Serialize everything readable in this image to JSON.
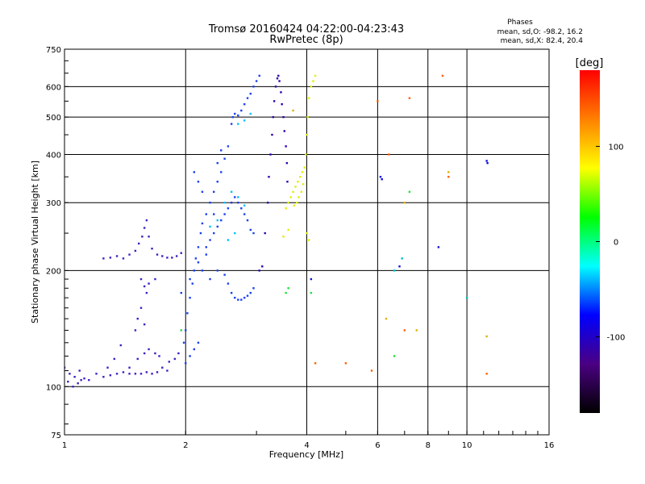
{
  "chart_data": {
    "type": "scatter",
    "title": "Tromsø 20160424 04:22:00-04:23:43",
    "subtitle": "RwPretec (8p)",
    "xlabel": "Frequency [MHz]",
    "ylabel": "Stationary phase Virtual Height [km]",
    "x_scale": "log",
    "y_scale": "log",
    "xlim": [
      1,
      16
    ],
    "ylim": [
      75,
      750
    ],
    "x_ticks": [
      1,
      2,
      4,
      6,
      8,
      10,
      16
    ],
    "y_ticks": [
      75,
      100,
      200,
      300,
      400,
      500,
      600,
      750
    ],
    "grid": true,
    "legend": {
      "title": "Phases",
      "lines": [
        "mean, sd,O: -98.2, 16.2",
        "mean, sd,X: 82.4, 20.4"
      ],
      "placement": "top-right"
    },
    "colorbar": {
      "label": "[deg]",
      "range": [
        -180,
        180
      ],
      "ticks": [
        100,
        0,
        -100
      ],
      "colors": [
        "#000000",
        "#4b0082",
        "#0000ff",
        "#00ffff",
        "#00ff00",
        "#ffff00",
        "#ff8000",
        "#ff0000"
      ]
    },
    "series": [
      {
        "color": "#4020c0",
        "points": [
          [
            1.0,
            112
          ],
          [
            1.03,
            108
          ],
          [
            1.06,
            106
          ],
          [
            1.09,
            110
          ],
          [
            1.12,
            105
          ],
          [
            1.15,
            104
          ],
          [
            1.2,
            108
          ],
          [
            1.25,
            106
          ],
          [
            1.3,
            107
          ],
          [
            1.35,
            108
          ],
          [
            1.4,
            109
          ],
          [
            1.45,
            108
          ],
          [
            1.5,
            108
          ],
          [
            1.55,
            108
          ],
          [
            1.6,
            109
          ],
          [
            1.65,
            108
          ],
          [
            1.7,
            109
          ],
          [
            1.75,
            112
          ],
          [
            1.8,
            110
          ],
          [
            1.02,
            103
          ],
          [
            1.05,
            100
          ],
          [
            1.08,
            102
          ],
          [
            1.1,
            104
          ],
          [
            1.28,
            112
          ],
          [
            1.33,
            118
          ],
          [
            1.38,
            128
          ],
          [
            1.45,
            112
          ],
          [
            1.52,
            118
          ],
          [
            1.58,
            122
          ],
          [
            1.62,
            125
          ],
          [
            1.68,
            122
          ],
          [
            1.72,
            120
          ],
          [
            1.82,
            116
          ],
          [
            1.88,
            118
          ],
          [
            1.92,
            122
          ],
          [
            1.25,
            215
          ],
          [
            1.3,
            216
          ],
          [
            1.35,
            218
          ],
          [
            1.4,
            215
          ],
          [
            1.45,
            220
          ],
          [
            1.5,
            225
          ],
          [
            1.53,
            235
          ],
          [
            1.56,
            245
          ],
          [
            1.58,
            258
          ],
          [
            1.6,
            270
          ],
          [
            1.62,
            245
          ],
          [
            1.65,
            228
          ],
          [
            1.7,
            220
          ],
          [
            1.75,
            218
          ],
          [
            1.8,
            216
          ],
          [
            1.85,
            216
          ],
          [
            1.9,
            218
          ],
          [
            1.95,
            222
          ],
          [
            1.55,
            190
          ],
          [
            1.58,
            182
          ],
          [
            1.6,
            175
          ],
          [
            1.62,
            185
          ],
          [
            1.68,
            190
          ],
          [
            1.5,
            140
          ],
          [
            1.52,
            150
          ],
          [
            1.55,
            160
          ],
          [
            1.58,
            145
          ]
        ]
      },
      {
        "color": "#1a40f0",
        "points": [
          [
            1.98,
            130
          ],
          [
            2.0,
            140
          ],
          [
            2.02,
            155
          ],
          [
            2.05,
            170
          ],
          [
            2.08,
            185
          ],
          [
            2.1,
            200
          ],
          [
            2.12,
            215
          ],
          [
            2.15,
            230
          ],
          [
            2.18,
            250
          ],
          [
            2.2,
            265
          ],
          [
            2.25,
            280
          ],
          [
            2.3,
            300
          ],
          [
            2.35,
            320
          ],
          [
            2.4,
            340
          ],
          [
            2.45,
            360
          ],
          [
            2.5,
            390
          ],
          [
            2.55,
            420
          ],
          [
            2.6,
            480
          ],
          [
            2.62,
            500
          ],
          [
            2.65,
            510
          ],
          [
            2.7,
            505
          ],
          [
            2.75,
            520
          ],
          [
            2.8,
            540
          ],
          [
            2.85,
            560
          ],
          [
            2.9,
            575
          ],
          [
            2.95,
            600
          ],
          [
            3.0,
            620
          ],
          [
            3.05,
            640
          ],
          [
            2.0,
            115
          ],
          [
            2.05,
            120
          ],
          [
            2.1,
            125
          ],
          [
            2.15,
            130
          ],
          [
            2.2,
            200
          ],
          [
            2.25,
            220
          ],
          [
            2.3,
            240
          ],
          [
            2.35,
            250
          ],
          [
            2.4,
            260
          ],
          [
            2.45,
            270
          ],
          [
            2.5,
            280
          ],
          [
            2.55,
            290
          ],
          [
            2.6,
            300
          ],
          [
            2.65,
            310
          ],
          [
            2.7,
            300
          ],
          [
            2.75,
            290
          ],
          [
            2.8,
            280
          ],
          [
            2.85,
            270
          ],
          [
            2.9,
            255
          ],
          [
            2.95,
            250
          ],
          [
            2.3,
            190
          ],
          [
            2.4,
            200
          ],
          [
            2.5,
            195
          ],
          [
            2.55,
            185
          ],
          [
            2.6,
            175
          ],
          [
            2.65,
            170
          ],
          [
            2.7,
            168
          ],
          [
            2.75,
            168
          ],
          [
            2.8,
            170
          ],
          [
            2.85,
            172
          ],
          [
            2.9,
            175
          ],
          [
            2.95,
            180
          ],
          [
            2.1,
            360
          ],
          [
            2.15,
            340
          ],
          [
            2.2,
            320
          ],
          [
            2.4,
            380
          ],
          [
            2.45,
            410
          ],
          [
            2.35,
            280
          ],
          [
            2.25,
            230
          ],
          [
            2.15,
            210
          ],
          [
            2.05,
            190
          ],
          [
            1.95,
            175
          ]
        ]
      },
      {
        "color": "#3000b0",
        "points": [
          [
            3.05,
            200
          ],
          [
            3.1,
            205
          ],
          [
            3.15,
            250
          ],
          [
            3.2,
            300
          ],
          [
            3.22,
            350
          ],
          [
            3.25,
            400
          ],
          [
            3.28,
            450
          ],
          [
            3.3,
            500
          ],
          [
            3.32,
            550
          ],
          [
            3.35,
            600
          ],
          [
            3.38,
            630
          ],
          [
            3.4,
            640
          ],
          [
            3.42,
            620
          ],
          [
            3.45,
            580
          ],
          [
            3.47,
            540
          ],
          [
            3.5,
            500
          ],
          [
            3.52,
            460
          ],
          [
            3.55,
            420
          ],
          [
            3.57,
            380
          ],
          [
            3.58,
            340
          ],
          [
            3.6,
            300
          ]
        ]
      },
      {
        "color": "#e0f000",
        "points": [
          [
            3.55,
            290
          ],
          [
            3.6,
            300
          ],
          [
            3.65,
            310
          ],
          [
            3.7,
            320
          ],
          [
            3.75,
            330
          ],
          [
            3.8,
            340
          ],
          [
            3.85,
            350
          ],
          [
            3.9,
            360
          ],
          [
            3.95,
            370
          ],
          [
            3.72,
            295
          ],
          [
            3.78,
            300
          ],
          [
            3.82,
            310
          ],
          [
            3.88,
            320
          ],
          [
            3.92,
            335
          ],
          [
            3.98,
            400
          ],
          [
            4.0,
            450
          ],
          [
            4.02,
            500
          ],
          [
            4.05,
            560
          ],
          [
            4.1,
            600
          ],
          [
            4.15,
            620
          ],
          [
            4.2,
            640
          ],
          [
            4.0,
            250
          ],
          [
            4.05,
            240
          ],
          [
            3.5,
            245
          ],
          [
            3.6,
            255
          ]
        ]
      },
      {
        "color": "#00c0ff",
        "points": [
          [
            2.3,
            260
          ],
          [
            2.4,
            270
          ],
          [
            2.5,
            300
          ],
          [
            2.6,
            320
          ],
          [
            2.7,
            310
          ],
          [
            2.8,
            295
          ],
          [
            2.55,
            240
          ],
          [
            2.65,
            250
          ],
          [
            2.7,
            480
          ],
          [
            2.8,
            490
          ],
          [
            2.9,
            510
          ]
        ]
      },
      {
        "color": "#ff6000",
        "points": [
          [
            5.8,
            110
          ],
          [
            6.0,
            550
          ],
          [
            6.4,
            400
          ],
          [
            7.2,
            560
          ],
          [
            8.7,
            640
          ],
          [
            9.0,
            350
          ],
          [
            11.2,
            108
          ],
          [
            7.0,
            140
          ],
          [
            4.2,
            115
          ],
          [
            5.0,
            115
          ]
        ]
      },
      {
        "color": "#1010e0",
        "points": [
          [
            6.1,
            350
          ],
          [
            6.15,
            345
          ],
          [
            8.5,
            230
          ],
          [
            11.2,
            385
          ],
          [
            11.25,
            380
          ],
          [
            6.8,
            205
          ],
          [
            4.1,
            190
          ]
        ]
      },
      {
        "color": "#20e040",
        "points": [
          [
            3.6,
            180
          ],
          [
            3.55,
            175
          ],
          [
            4.1,
            175
          ],
          [
            1.95,
            140
          ],
          [
            6.6,
            120
          ],
          [
            7.2,
            320
          ]
        ]
      },
      {
        "color": "#00c0c0",
        "points": [
          [
            10.0,
            170
          ],
          [
            6.9,
            215
          ],
          [
            6.6,
            200
          ]
        ]
      },
      {
        "color": "#e0b000",
        "points": [
          [
            7.0,
            300
          ],
          [
            7.5,
            140
          ],
          [
            11.2,
            135
          ],
          [
            6.3,
            150
          ],
          [
            3.7,
            520
          ],
          [
            9.0,
            360
          ]
        ]
      }
    ]
  }
}
